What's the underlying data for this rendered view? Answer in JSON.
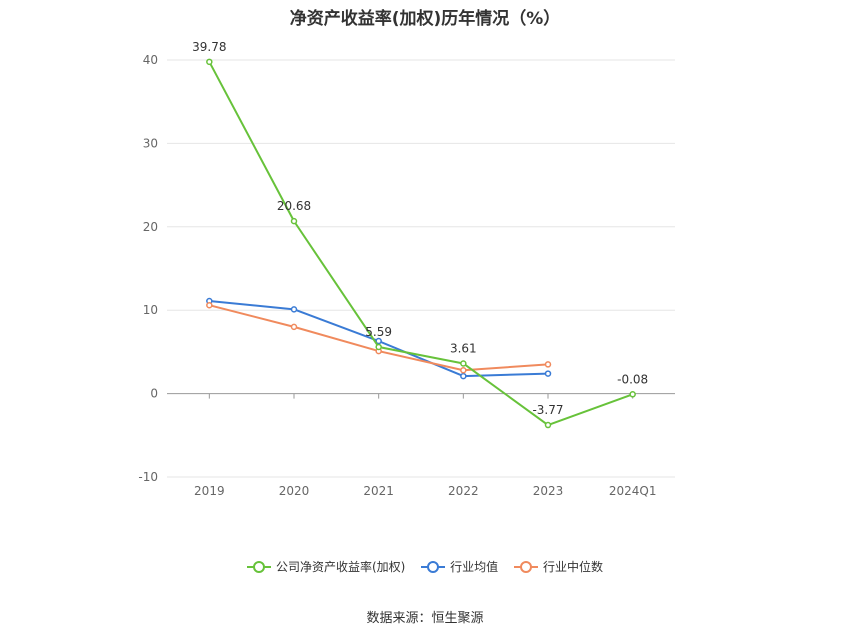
{
  "title": "净资产收益率(加权)历年情况（%）",
  "source": "数据来源：恒生聚源",
  "chart_data": {
    "type": "line",
    "categories": [
      "2019",
      "2020",
      "2021",
      "2022",
      "2023",
      "2024Q1"
    ],
    "ylim": [
      -10,
      40
    ],
    "yticks": [
      -10,
      0,
      10,
      20,
      30,
      40
    ],
    "grid": true,
    "legend_position": "bottom",
    "series": [
      {
        "name": "公司净资产收益率(加权)",
        "color": "#67c23a",
        "values": [
          39.78,
          20.68,
          5.59,
          3.61,
          -3.77,
          -0.08
        ],
        "labels": [
          "39.78",
          "20.68",
          "5.59",
          "3.61",
          "-3.77",
          "-0.08"
        ]
      },
      {
        "name": "行业均值",
        "color": "#3a7bd5",
        "values": [
          11.1,
          10.1,
          6.3,
          2.1,
          2.4,
          null
        ]
      },
      {
        "name": "行业中位数",
        "color": "#f08a5d",
        "values": [
          10.6,
          8.0,
          5.1,
          2.8,
          3.5,
          null
        ]
      }
    ]
  }
}
